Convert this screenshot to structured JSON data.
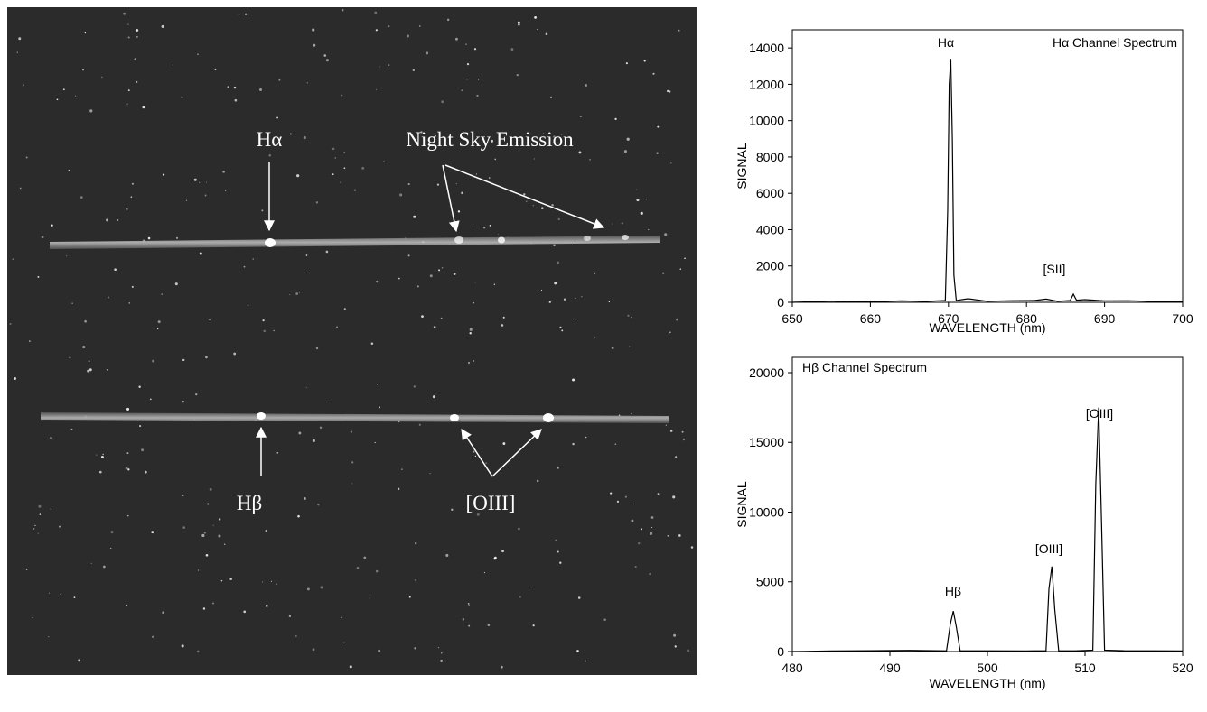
{
  "image": {
    "labels": [
      "Hα",
      "Night Sky Emission",
      "Hβ",
      "[OIII]"
    ]
  },
  "chart_data": [
    {
      "type": "line",
      "title": "Hα Channel Spectrum",
      "x_label": "WAVELENGTH (nm)",
      "y_label": "SIGNAL",
      "annotations": [
        "Hα",
        "[SII]"
      ],
      "color": "#000000",
      "x": [
        650,
        652,
        655,
        658,
        661,
        664,
        667,
        669.6,
        669.9,
        670.1,
        670.3,
        670.5,
        670.7,
        671,
        672.5,
        675,
        678,
        681,
        682.5,
        684,
        685.6,
        686,
        686.4,
        687.5,
        690,
        693,
        696,
        700
      ],
      "values": [
        0,
        30,
        70,
        20,
        40,
        80,
        50,
        100,
        5000,
        12000,
        13400,
        9000,
        1500,
        100,
        200,
        60,
        90,
        100,
        180,
        60,
        100,
        450,
        120,
        150,
        80,
        90,
        50,
        40
      ],
      "xlim": [
        650,
        700
      ],
      "xticks": [
        650,
        660,
        670,
        680,
        690,
        700
      ],
      "ylim": [
        0,
        15000
      ],
      "yticks": [
        0,
        2000,
        4000,
        6000,
        8000,
        10000,
        12000,
        14000
      ]
    },
    {
      "type": "line",
      "title": "Hβ Channel Spectrum",
      "x_label": "WAVELENGTH (nm)",
      "y_label": "SIGNAL",
      "annotations": [
        "Hβ",
        "[OIII]",
        "[OIII]"
      ],
      "color": "#000000",
      "x": [
        480,
        484,
        488,
        492,
        495.8,
        496.2,
        496.5,
        496.8,
        497.2,
        500,
        504,
        506,
        506.3,
        506.6,
        506.9,
        507.3,
        509,
        510.8,
        511.1,
        511.4,
        511.7,
        512,
        514,
        517,
        520
      ],
      "values": [
        0,
        40,
        60,
        80,
        50,
        2000,
        2900,
        1800,
        60,
        50,
        40,
        60,
        4500,
        6100,
        3000,
        60,
        50,
        100,
        12000,
        17500,
        9000,
        100,
        60,
        50,
        40
      ],
      "xlim": [
        480,
        520
      ],
      "xticks": [
        480,
        490,
        500,
        510,
        520
      ],
      "ylim": [
        0,
        21100
      ],
      "yticks": [
        0,
        5000,
        10000,
        15000,
        20000
      ]
    }
  ]
}
